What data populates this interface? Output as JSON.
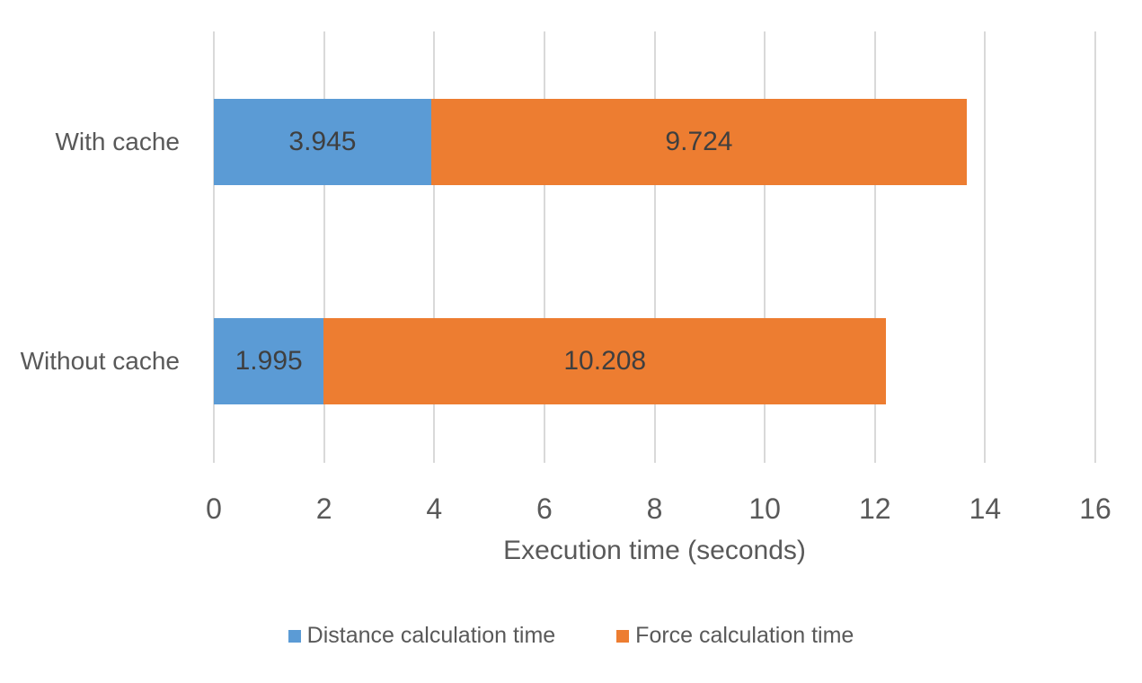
{
  "chart_data": {
    "type": "bar",
    "orientation": "horizontal",
    "stacked": true,
    "title": "",
    "categories": [
      "With cache",
      "Without cache"
    ],
    "series": [
      {
        "name": "Distance calculation time",
        "color": "#5B9BD5",
        "values": [
          3.945,
          1.995
        ]
      },
      {
        "name": "Force calculation time",
        "color": "#ED7D31",
        "values": [
          9.724,
          10.208
        ]
      }
    ],
    "data_labels": [
      [
        "3.945",
        "9.724"
      ],
      [
        "1.995",
        "10.208"
      ]
    ],
    "xlabel": "Execution time (seconds)",
    "ylabel": "",
    "xlim": [
      0,
      16
    ],
    "xticks": [
      "0",
      "2",
      "4",
      "6",
      "8",
      "10",
      "12",
      "14",
      "16"
    ],
    "grid": "vertical-major",
    "legend_position": "bottom"
  },
  "colors": {
    "background": "#FFFFFF",
    "gridline": "#D9D9D9",
    "axis_text": "#595959",
    "bar_label_text": "#3F3F3F"
  }
}
